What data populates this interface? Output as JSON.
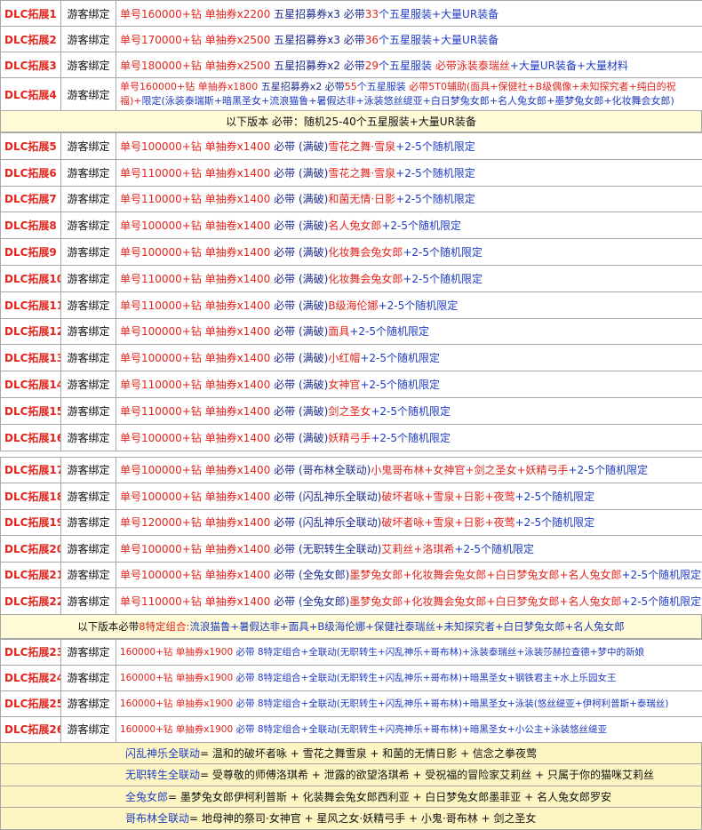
{
  "blocks": [
    {
      "kind": "rows",
      "height": 29,
      "rows": [
        {
          "id": "DLC拓展1",
          "bind": "游客绑定",
          "text": [
            {
              "text": "单号160000+钻 单抽券x2200",
              "color": "#e3241c"
            },
            {
              "text": " 五星招募券x3 必带",
              "color": "#1c2a8c"
            },
            {
              "text": "33",
              "color": "#e3241c"
            },
            {
              "text": "个五星服装+大量UR装备",
              "color": "#1f3bc2"
            }
          ]
        },
        {
          "id": "DLC拓展2",
          "bind": "游客绑定",
          "text": [
            {
              "text": "单号170000+钻 单抽券x2500",
              "color": "#e3241c"
            },
            {
              "text": " 五星招募券x3 必带",
              "color": "#1c2a8c"
            },
            {
              "text": "36",
              "color": "#e3241c"
            },
            {
              "text": "个五星服装+大量UR装备",
              "color": "#1f3bc2"
            }
          ]
        },
        {
          "id": "DLC拓展3",
          "bind": "游客绑定",
          "text": [
            {
              "text": "单号180000+钻 单抽券x2500",
              "color": "#e3241c"
            },
            {
              "text": " 五星招募券x2 必带",
              "color": "#1c2a8c"
            },
            {
              "text": "29",
              "color": "#e3241c"
            },
            {
              "text": "个五星服装 ",
              "color": "#1f3bc2"
            },
            {
              "text": "必带泳装泰瑞丝",
              "color": "#e3241c"
            },
            {
              "text": "+大量UR装备+大量材料",
              "color": "#1f3bc2"
            }
          ]
        },
        {
          "id": "DLC拓展4",
          "bind": "游客绑定",
          "text": [
            {
              "text": "单号160000+钻 单抽券x1800",
              "color": "#e3241c"
            },
            {
              "text": " 五星招募券x2 必带",
              "color": "#1c2a8c"
            },
            {
              "text": "55",
              "color": "#e3241c"
            },
            {
              "text": "个五星服装 ",
              "color": "#1f3bc2"
            },
            {
              "text": "必带5T0辅助(面具+保健社+B级偶像+未知探究者+纯白的祝福)+",
              "color": "#e3241c"
            },
            {
              "text": "限定(泳装泰瑞斯+暗黑圣女+流浪猫鲁+暑假达非+泳装悠丝缇亚+白日梦兔女郎+名人兔女郎+墨梦兔女郎+化妆舞会女郎)",
              "color": "#1f3bc2"
            }
          ]
        }
      ]
    },
    {
      "kind": "banner",
      "text": [
        {
          "text": "以下版本 必带：随机25-40个五星服装+大量UR装备",
          "color": "#111111"
        }
      ]
    },
    {
      "kind": "rows",
      "height": 29.8,
      "rows": [
        {
          "id": "DLC拓展5",
          "bind": "游客绑定",
          "text": [
            {
              "text": "单号100000+钻 单抽券x1400",
              "color": "#e3241c"
            },
            {
              "text": " 必带 (满破)",
              "color": "#1c2a8c"
            },
            {
              "text": "雪花之舞·雪泉",
              "color": "#e3241c"
            },
            {
              "text": "+2-5个随机限定",
              "color": "#1f3bc2"
            }
          ]
        },
        {
          "id": "DLC拓展6",
          "bind": "游客绑定",
          "text": [
            {
              "text": "单号110000+钻 单抽券x1400",
              "color": "#e3241c"
            },
            {
              "text": " 必带 (满破)",
              "color": "#1c2a8c"
            },
            {
              "text": "雪花之舞·雪泉",
              "color": "#e3241c"
            },
            {
              "text": "+2-5个随机限定",
              "color": "#1f3bc2"
            }
          ]
        },
        {
          "id": "DLC拓展7",
          "bind": "游客绑定",
          "text": [
            {
              "text": "单号110000+钻 单抽券x1400",
              "color": "#e3241c"
            },
            {
              "text": " 必带 (满破)",
              "color": "#1c2a8c"
            },
            {
              "text": "和菌无情·日影",
              "color": "#e3241c"
            },
            {
              "text": "+2-5个随机限定",
              "color": "#1f3bc2"
            }
          ]
        },
        {
          "id": "DLC拓展8",
          "bind": "游客绑定",
          "text": [
            {
              "text": "单号100000+钻 单抽卷x1400",
              "color": "#e3241c"
            },
            {
              "text": " 必带 (满破)",
              "color": "#1c2a8c"
            },
            {
              "text": "名人兔女郎",
              "color": "#e3241c"
            },
            {
              "text": "+2-5个随机限定",
              "color": "#1f3bc2"
            }
          ]
        },
        {
          "id": "DLC拓展9",
          "bind": "游客绑定",
          "text": [
            {
              "text": "单号100000+钻 单抽券x1400",
              "color": "#e3241c"
            },
            {
              "text": " 必带 (满破)",
              "color": "#1c2a8c"
            },
            {
              "text": "化妆舞会兔女郎",
              "color": "#e3241c"
            },
            {
              "text": "+2-5个随机限定",
              "color": "#1f3bc2"
            }
          ]
        },
        {
          "id": "DLC拓展10",
          "bind": "游客绑定",
          "text": [
            {
              "text": "单号110000+钻 单抽券x1400",
              "color": "#e3241c"
            },
            {
              "text": " 必带 (满破)",
              "color": "#1c2a8c"
            },
            {
              "text": "化妆舞会兔女郎",
              "color": "#e3241c"
            },
            {
              "text": "+2-5个随机限定",
              "color": "#1f3bc2"
            }
          ]
        },
        {
          "id": "DLC拓展11",
          "bind": "游客绑定",
          "text": [
            {
              "text": "单号110000+钻 单抽券x1400",
              "color": "#e3241c"
            },
            {
              "text": " 必带 (满破)",
              "color": "#1c2a8c"
            },
            {
              "text": "B级海伦娜",
              "color": "#e3241c"
            },
            {
              "text": "+2-5个随机限定",
              "color": "#1f3bc2"
            }
          ]
        },
        {
          "id": "DLC拓展12",
          "bind": "游客绑定",
          "text": [
            {
              "text": "单号100000+钻 单抽券x1400",
              "color": "#e3241c"
            },
            {
              "text": " 必带 (满破)",
              "color": "#1c2a8c"
            },
            {
              "text": "面具",
              "color": "#e3241c"
            },
            {
              "text": "+2-5个随机限定",
              "color": "#1f3bc2"
            }
          ]
        },
        {
          "id": "DLC拓展13",
          "bind": "游客绑定",
          "text": [
            {
              "text": "单号100000+钻 单抽券x1400",
              "color": "#e3241c"
            },
            {
              "text": " 必带 (满破)",
              "color": "#1c2a8c"
            },
            {
              "text": "小红帽",
              "color": "#e3241c"
            },
            {
              "text": "+2-5个随机限定",
              "color": "#1f3bc2"
            }
          ]
        },
        {
          "id": "DLC拓展14",
          "bind": "游客绑定",
          "text": [
            {
              "text": "单号110000+钻 单抽券x1400",
              "color": "#e3241c"
            },
            {
              "text": " 必带 (满破)",
              "color": "#1c2a8c"
            },
            {
              "text": "女神官",
              "color": "#e3241c"
            },
            {
              "text": "+2-5个随机限定",
              "color": "#1f3bc2"
            }
          ]
        },
        {
          "id": "DLC拓展15",
          "bind": "游客绑定",
          "text": [
            {
              "text": "单号110000+钻 单抽券x1400",
              "color": "#e3241c"
            },
            {
              "text": " 必带 (满破)",
              "color": "#1c2a8c"
            },
            {
              "text": "剑之圣女",
              "color": "#e3241c"
            },
            {
              "text": "+2-5个随机限定",
              "color": "#1f3bc2"
            }
          ]
        },
        {
          "id": "DLC拓展16",
          "bind": "游客绑定",
          "text": [
            {
              "text": "单号100000+钻 单抽券x1400",
              "color": "#e3241c"
            },
            {
              "text": " 必带 (满破)",
              "color": "#1c2a8c"
            },
            {
              "text": "妖精弓手",
              "color": "#e3241c"
            },
            {
              "text": "+2-5个随机限定",
              "color": "#1f3bc2"
            }
          ]
        }
      ]
    },
    {
      "kind": "gap"
    },
    {
      "kind": "rows",
      "height": 29.5,
      "rows": [
        {
          "id": "DLC拓展17",
          "bind": "游客绑定",
          "text": [
            {
              "text": "单号100000+钻 单抽券x1400",
              "color": "#e3241c"
            },
            {
              "text": " 必带 (哥布林全联动)",
              "color": "#1c2a8c"
            },
            {
              "text": "小鬼哥布林+女神官+剑之圣女+妖精弓手",
              "color": "#e3241c"
            },
            {
              "text": "+2-5个随机限定",
              "color": "#1f3bc2"
            }
          ]
        },
        {
          "id": "DLC拓展18",
          "bind": "游客绑定",
          "text": [
            {
              "text": "单号100000+钻 单抽券x1400",
              "color": "#e3241c"
            },
            {
              "text": " 必带 (闪乱神乐全联动)",
              "color": "#1c2a8c"
            },
            {
              "text": "破坏者咏+雪泉+日影+夜莺",
              "color": "#e3241c"
            },
            {
              "text": "+2-5个随机限定",
              "color": "#1f3bc2"
            }
          ]
        },
        {
          "id": "DLC拓展19",
          "bind": "游客绑定",
          "text": [
            {
              "text": "单号120000+钻 单抽券x1400",
              "color": "#e3241c"
            },
            {
              "text": " 必带 (闪乱神乐全联动)",
              "color": "#1c2a8c"
            },
            {
              "text": "破坏者咏+雪泉+日影+夜莺",
              "color": "#e3241c"
            },
            {
              "text": "+2-5个随机限定",
              "color": "#1f3bc2"
            }
          ]
        },
        {
          "id": "DLC拓展20",
          "bind": "游客绑定",
          "text": [
            {
              "text": "单号100000+钻 单抽券x1400",
              "color": "#e3241c"
            },
            {
              "text": " 必带 (无职转生全联动)",
              "color": "#1c2a8c"
            },
            {
              "text": "艾莉丝+洛琪希",
              "color": "#e3241c"
            },
            {
              "text": "+2-5个随机限定",
              "color": "#1f3bc2"
            }
          ]
        },
        {
          "id": "DLC拓展21",
          "bind": "游客绑定",
          "text": [
            {
              "text": "单号100000+钻 单抽券x1400",
              "color": "#e3241c"
            },
            {
              "text": " 必带 (全兔女郎)",
              "color": "#1c2a8c"
            },
            {
              "text": "墨梦兔女郎+化妆舞会兔女郎+白日梦兔女郎+名人兔女郎",
              "color": "#e3241c"
            },
            {
              "text": "+2-5个随机限定",
              "color": "#1f3bc2"
            }
          ]
        },
        {
          "id": "DLC拓展22",
          "bind": "游客绑定",
          "text": [
            {
              "text": "单号110000+钻 单抽券x1400",
              "color": "#e3241c"
            },
            {
              "text": " 必带 (全兔女郎)",
              "color": "#1c2a8c"
            },
            {
              "text": "墨梦兔女郎+化妆舞会兔女郎+白日梦兔女郎+名人兔女郎",
              "color": "#e3241c"
            },
            {
              "text": "+2-5个随机限定",
              "color": "#1f3bc2"
            }
          ]
        }
      ]
    },
    {
      "kind": "banner",
      "text": [
        {
          "text": "以下版本必带 ",
          "color": "#111111"
        },
        {
          "text": "8特定组合:",
          "color": "#e3241c"
        },
        {
          "text": " 流浪猫鲁+暑假达非+面具+B级海伦娜+保健社泰瑞丝+未知探究者+白日梦兔女郎+名人兔女郎",
          "color": "#1f3bc2"
        }
      ]
    },
    {
      "kind": "rows",
      "height": 29,
      "small": true,
      "rows": [
        {
          "id": "DLC拓展23",
          "bind": "游客绑定",
          "text": [
            {
              "text": "160000+钻 单抽券x1900",
              "color": "#e3241c"
            },
            {
              "text": " 必带 8特定组合+全联动(无职转生+闪乱神乐+哥布林)+泳装泰瑞丝+泳装莎赫拉查德+梦中的新娘",
              "color": "#1f3bc2"
            }
          ]
        },
        {
          "id": "DLC拓展24",
          "bind": "游客绑定",
          "text": [
            {
              "text": "160000+钻 单抽券x1900",
              "color": "#e3241c"
            },
            {
              "text": " 必带 8特定组合+全联动(无职转生+闪乱神乐+哥布林)+暗黑圣女+钢铁君主+水上乐园女王",
              "color": "#1f3bc2"
            }
          ]
        },
        {
          "id": "DLC拓展25",
          "bind": "游客绑定",
          "text": [
            {
              "text": "160000+钻 单抽券x1900",
              "color": "#e3241c"
            },
            {
              "text": " 必带 8特定组合+全联动(无职转生+闪乱神乐+哥布林)+暗黑圣女+泳装(悠丝缇亚+伊柯利普斯+泰瑞丝)",
              "color": "#1f3bc2"
            }
          ]
        },
        {
          "id": "DLC拓展26",
          "bind": "游客绑定",
          "text": [
            {
              "text": "160000+钻 单抽券x1900",
              "color": "#e3241c"
            },
            {
              "text": " 必带 8特定组合+全联动(无职转生+闪亮神乐+哥布林)+暗黑圣女+小公主+泳装悠丝缇亚",
              "color": "#1f3bc2"
            }
          ]
        }
      ]
    },
    {
      "kind": "notes",
      "notes": [
        [
          {
            "text": "闪乱神乐全联动",
            "color": "#1f3bc2"
          },
          {
            "text": " = 温和的破坏者咏 + 雪花之舞雪泉 + 和菌的无情日影 + 信念之拳夜莺",
            "color": "#111111"
          }
        ],
        [
          {
            "text": "无职转生全联动",
            "color": "#1f3bc2"
          },
          {
            "text": " = 受尊敬的师傅洛琪希 + 泄露的欲望洛琪希 + 受祝福的冒险家艾莉丝 + 只属于你的猫咪艾莉丝",
            "color": "#111111"
          }
        ],
        [
          {
            "text": "全兔女郎",
            "color": "#1f3bc2"
          },
          {
            "text": " = 墨梦兔女郎伊柯利普斯 + 化装舞会兔女郎西利亚 + 白日梦兔女郎墨菲亚 + 名人兔女郎罗安",
            "color": "#111111"
          }
        ],
        [
          {
            "text": "哥布林全联动",
            "color": "#1f3bc2"
          },
          {
            "text": " = 地母神的祭司·女神官 + 星风之女·妖精弓手 + 小鬼·哥布林 + 剑之圣女",
            "color": "#111111"
          }
        ]
      ]
    }
  ]
}
